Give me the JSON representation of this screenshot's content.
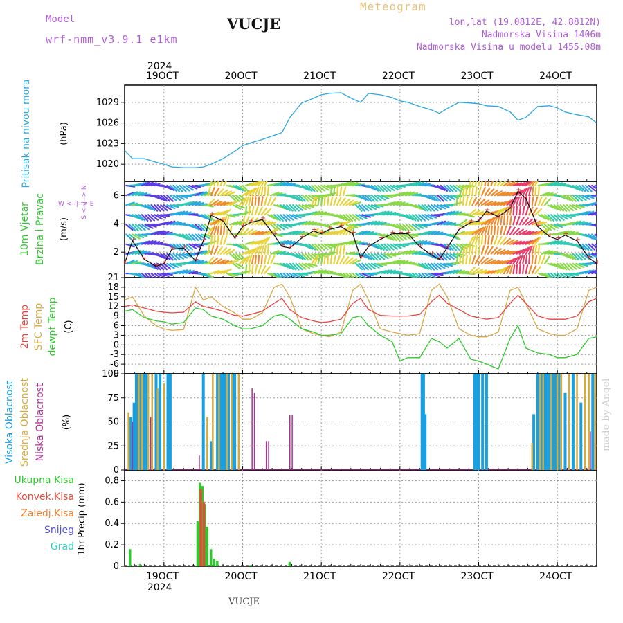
{
  "header": {
    "model_label": "Model",
    "model_name": "wrf-nmm_v3.9.1  e1km",
    "station": "VUCJE",
    "title": "Meteogram",
    "coords": "lon,lat (19.0812E, 42.8812N)",
    "elevation": "Nadmorska Visina 1406m",
    "elevation_model": "Nadmorska Visina u modelu 1455.08m",
    "bottom_station": "VUCJE",
    "watermark": "made by Angel"
  },
  "time_axis": {
    "year": "2024",
    "days": [
      "19OCT",
      "20OCT",
      "21OCT",
      "22OCT",
      "23OCT",
      "24OCT"
    ],
    "range_days": [
      18.5,
      24.5
    ]
  },
  "colors": {
    "pressure": "#2aa7e0",
    "temp2m": "#e8423e",
    "sfc": "#d8a845",
    "dew": "#2ec82e",
    "high": "#1aa0e0",
    "mid": "#d6aa3a",
    "low": "#b0309a",
    "total": "#2ec82e",
    "conv": "#e84a3a",
    "frz": "#f08030",
    "snow": "#5050e0",
    "hail": "#30c8c0"
  },
  "chart_data": [
    {
      "type": "line",
      "panel": "pressure",
      "ylabel_color": "Pritisak na nivou mora",
      "ylabel": "(hPa)",
      "ylim": [
        1017.5,
        1031.5
      ],
      "yticks": [
        1020,
        1023,
        1026,
        1029
      ],
      "x": [
        18.5,
        18.6,
        18.75,
        18.9,
        19.0,
        19.1,
        19.25,
        19.4,
        19.5,
        19.6,
        19.75,
        19.9,
        20.0,
        20.1,
        20.25,
        20.4,
        20.5,
        20.6,
        20.75,
        20.9,
        21.0,
        21.1,
        21.25,
        21.4,
        21.5,
        21.6,
        21.75,
        21.9,
        22.0,
        22.1,
        22.25,
        22.4,
        22.5,
        22.6,
        22.75,
        22.9,
        23.0,
        23.1,
        23.25,
        23.4,
        23.5,
        23.6,
        23.75,
        23.9,
        24.0,
        24.1,
        24.25,
        24.4,
        24.5
      ],
      "series": [
        {
          "values": [
            1022.0,
            1020.8,
            1020.8,
            1020.3,
            1020.0,
            1019.6,
            1019.5,
            1019.5,
            1019.6,
            1020.0,
            1020.8,
            1021.9,
            1022.7,
            1023.1,
            1023.6,
            1024.2,
            1024.6,
            1026.8,
            1028.9,
            1029.6,
            1030.1,
            1030.3,
            1030.4,
            1029.5,
            1029.0,
            1030.3,
            1030.1,
            1029.7,
            1029.2,
            1029.0,
            1028.4,
            1027.9,
            1027.4,
            1028.1,
            1029.0,
            1028.9,
            1028.8,
            1028.5,
            1028.4,
            1027.6,
            1026.4,
            1026.8,
            1028.4,
            1028.5,
            1028.2,
            1027.6,
            1027.2,
            1026.9,
            1026.0
          ]
        }
      ]
    },
    {
      "type": "line",
      "panel": "wind",
      "ylabel_color": "10m Vjetar Brzina i Pravac",
      "ylabel": "(m/s)",
      "compass": "W <--|--> E",
      "compass_vertical": "S <--|--> N",
      "ylim": [
        0.2,
        7.0
      ],
      "yticks": [
        2,
        4,
        6
      ],
      "x": [
        18.5,
        18.6,
        18.75,
        18.9,
        19.0,
        19.1,
        19.25,
        19.4,
        19.5,
        19.6,
        19.75,
        19.9,
        20.0,
        20.1,
        20.25,
        20.4,
        20.5,
        20.6,
        20.75,
        20.9,
        21.0,
        21.1,
        21.25,
        21.4,
        21.5,
        21.6,
        21.75,
        21.9,
        22.0,
        22.1,
        22.25,
        22.4,
        22.5,
        22.6,
        22.75,
        22.9,
        23.0,
        23.1,
        23.25,
        23.4,
        23.5,
        23.6,
        23.75,
        23.9,
        24.0,
        24.1,
        24.25,
        24.4,
        24.5
      ],
      "series": [
        {
          "values": [
            1.2,
            2.8,
            1.5,
            1.0,
            1.2,
            2.2,
            2.3,
            1.4,
            2.8,
            4.6,
            4.2,
            3.0,
            3.8,
            4.1,
            4.3,
            3.2,
            2.4,
            2.3,
            3.0,
            3.5,
            3.3,
            3.6,
            3.8,
            3.3,
            1.6,
            2.4,
            2.9,
            3.3,
            3.3,
            3.3,
            2.4,
            1.8,
            1.5,
            2.3,
            3.6,
            4.1,
            4.2,
            4.9,
            4.5,
            5.1,
            6.3,
            5.8,
            3.8,
            3.1,
            2.9,
            3.2,
            2.8,
            1.6,
            1.2
          ]
        }
      ]
    },
    {
      "type": "line",
      "panel": "temperature",
      "ylabel_a": "2m Temp",
      "ylabel_b": "SFC Temp",
      "ylabel_c": "dewpt Temp",
      "ylabel": "(C)",
      "ylim": [
        -9,
        21
      ],
      "yticks": [
        -9,
        -6,
        -3,
        0,
        3,
        6,
        9,
        12,
        15,
        18,
        21
      ],
      "x": [
        18.5,
        18.6,
        18.75,
        18.9,
        19.0,
        19.1,
        19.25,
        19.4,
        19.5,
        19.6,
        19.75,
        19.9,
        20.0,
        20.1,
        20.25,
        20.4,
        20.5,
        20.6,
        20.75,
        20.9,
        21.0,
        21.1,
        21.25,
        21.4,
        21.5,
        21.6,
        21.75,
        21.9,
        22.0,
        22.1,
        22.25,
        22.4,
        22.5,
        22.6,
        22.75,
        22.9,
        23.0,
        23.1,
        23.25,
        23.4,
        23.5,
        23.6,
        23.75,
        23.9,
        24.0,
        24.1,
        24.25,
        24.4,
        24.5
      ],
      "series": [
        {
          "name": "2m Temp",
          "values": [
            12,
            12.5,
            11.5,
            10.5,
            10.2,
            10,
            10.2,
            13.5,
            12,
            11.5,
            10.5,
            9.2,
            9,
            9.5,
            10.5,
            13,
            14.5,
            11,
            8.5,
            7.5,
            7,
            7.2,
            8,
            13,
            14.5,
            11,
            9.2,
            9,
            9,
            9,
            9.5,
            13.5,
            15.5,
            13,
            11,
            9,
            8.5,
            8,
            8.5,
            13,
            15.5,
            13,
            9,
            8,
            8,
            8,
            9,
            13.5,
            14.5
          ]
        },
        {
          "name": "SFC Temp",
          "values": [
            14,
            15,
            9,
            6,
            5,
            4.5,
            4.8,
            18,
            14,
            15,
            12,
            10,
            8,
            8,
            10,
            18,
            19,
            15,
            5,
            3.5,
            3,
            2.5,
            4,
            17,
            19,
            14,
            5,
            4,
            3.5,
            3,
            3.5,
            17,
            19,
            15,
            5,
            3,
            2.5,
            2.5,
            4,
            17,
            18,
            13,
            5,
            3.5,
            3,
            3,
            5,
            17,
            18
          ]
        },
        {
          "name": "dewpt Temp",
          "values": [
            10.5,
            11,
            8.5,
            7.5,
            7.2,
            6.5,
            7,
            11.5,
            11,
            9,
            8,
            6,
            5,
            5,
            6,
            9,
            9.5,
            8,
            5,
            4,
            3,
            3,
            3.5,
            8.5,
            9,
            6,
            3,
            1,
            -5,
            -4,
            -4,
            2,
            1,
            -1,
            2,
            -4.5,
            -5,
            -6,
            -7.5,
            2,
            6,
            -1,
            -2.5,
            -3,
            -4,
            -4,
            -3,
            2,
            2.5
          ]
        }
      ]
    },
    {
      "type": "bar",
      "panel": "clouds",
      "ylabel_a": "Visoka Oblacnost",
      "ylabel_b": "Srednja Oblacnost",
      "ylabel_c": "Niska Oblacnost",
      "ylabel": "(%)",
      "ylim": [
        0,
        100
      ],
      "yticks": [
        0,
        25,
        50,
        75,
        100
      ],
      "series": [
        {
          "name": "Visoka Oblacnost",
          "x": [
            18.58,
            18.62,
            18.65,
            18.7,
            18.75,
            18.78,
            18.9,
            18.95,
            19.05,
            19.08,
            19.5,
            19.6,
            19.68,
            19.72,
            19.75,
            19.78,
            19.82,
            19.88,
            19.9,
            22.28,
            22.3,
            22.32,
            22.95,
            22.97,
            23.0,
            23.05,
            23.1,
            23.7,
            23.75,
            23.8,
            23.84,
            23.87,
            23.9,
            23.94,
            23.98,
            24.02,
            24.1,
            24.2,
            24.3,
            24.45
          ],
          "values": [
            55,
            70,
            100,
            100,
            100,
            100,
            100,
            100,
            100,
            100,
            100,
            30,
            100,
            100,
            100,
            100,
            100,
            100,
            100,
            100,
            100,
            58,
            100,
            100,
            100,
            100,
            100,
            58,
            100,
            100,
            100,
            100,
            100,
            100,
            100,
            100,
            80,
            100,
            70,
            100
          ]
        },
        {
          "name": "Srednja Oblacnost",
          "x": [
            18.55,
            18.68,
            18.72,
            18.8,
            18.85,
            18.92,
            19.0,
            19.55,
            19.62,
            19.7,
            19.8,
            19.86,
            19.95,
            23.68,
            23.78,
            23.82,
            23.92,
            24.0,
            24.05,
            24.15,
            24.25,
            24.35,
            24.4,
            24.48
          ],
          "values": [
            60,
            100,
            100,
            100,
            100,
            85,
            90,
            55,
            100,
            100,
            100,
            100,
            100,
            28,
            100,
            100,
            100,
            100,
            100,
            100,
            100,
            100,
            100,
            100
          ]
        },
        {
          "name": "Niska Oblacnost",
          "x": [
            18.6,
            18.83,
            19.45,
            20.12,
            20.15,
            20.3,
            20.33,
            20.6,
            20.63,
            24.42
          ],
          "values": [
            50,
            55,
            15,
            85,
            80,
            30,
            30,
            57,
            57,
            40
          ]
        }
      ]
    },
    {
      "type": "bar",
      "panel": "precip",
      "ylabel": "1hr Precip (mm)",
      "ylim": [
        0,
        0.9
      ],
      "yticks": [
        0,
        0.2,
        0.4,
        0.6,
        0.8
      ],
      "legend": [
        "Ukupna Kisa",
        "Konvek.Kisa",
        "Zaledj.Kisa",
        "Snijeg",
        "Grad"
      ],
      "series": [
        {
          "name": "Ukupna Kisa",
          "x": [
            18.57,
            18.7,
            19.43,
            19.46,
            19.49,
            19.52,
            19.55,
            19.6,
            19.64,
            19.68,
            20.1,
            20.6
          ],
          "values": [
            0.16,
            0.02,
            0.42,
            0.78,
            0.75,
            0.58,
            0.37,
            0.16,
            0.07,
            0.05,
            0.01,
            0.04
          ]
        },
        {
          "name": "Konvek.Kisa",
          "x": [
            19.47,
            19.51
          ],
          "values": [
            0.72,
            0.6
          ]
        }
      ]
    }
  ]
}
